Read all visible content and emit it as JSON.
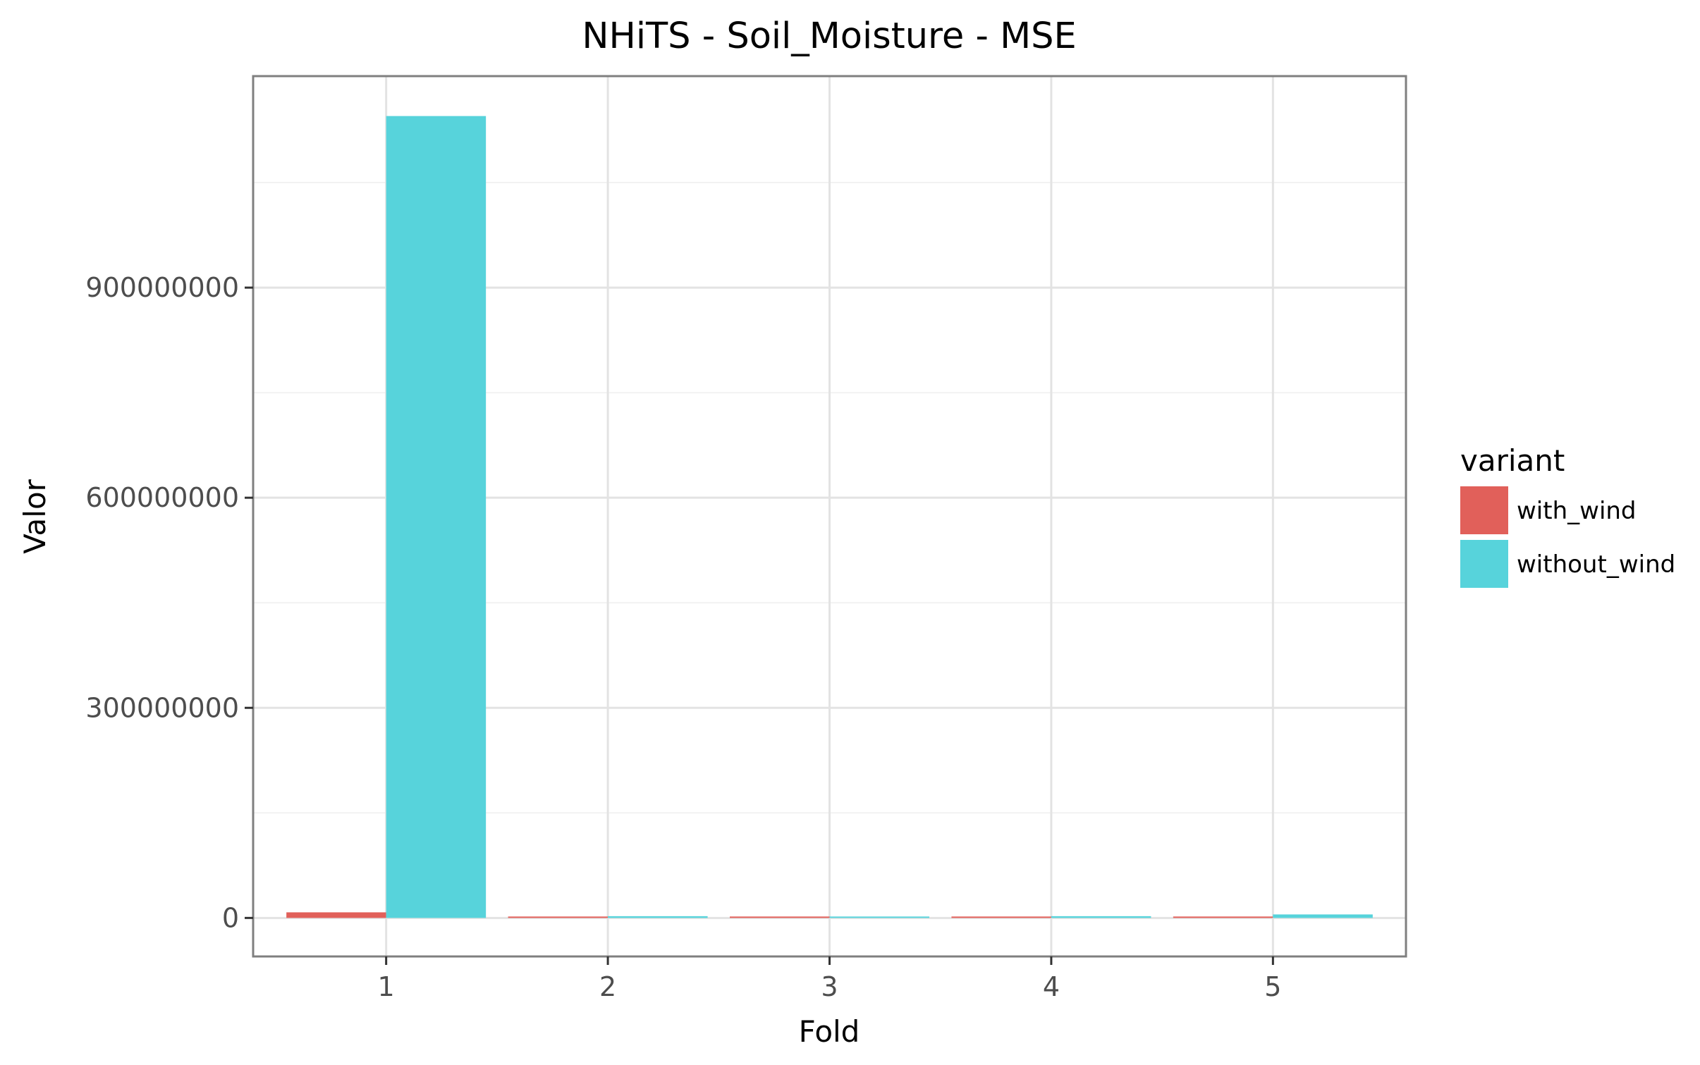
{
  "chart_data": {
    "type": "bar",
    "title": "NHiTS - Soil_Moisture - MSE",
    "xlabel": "Fold",
    "ylabel": "Valor",
    "categories": [
      "1",
      "2",
      "3",
      "4",
      "5"
    ],
    "series": [
      {
        "name": "with_wind",
        "color": "#e1605a",
        "values": [
          8000000,
          150000,
          100000,
          1500000,
          1500000
        ]
      },
      {
        "name": "without_wind",
        "color": "#57d3db",
        "values": [
          1145000000,
          2500000,
          1000000,
          2500000,
          5000000
        ]
      }
    ],
    "yticks": [
      0,
      300000000,
      600000000,
      900000000
    ],
    "ytick_labels": [
      "0",
      "300000000",
      "600000000",
      "900000000"
    ],
    "ylim": [
      -55000000,
      1202000000
    ],
    "grid": true,
    "legend": {
      "title": "variant",
      "position": "right"
    }
  }
}
